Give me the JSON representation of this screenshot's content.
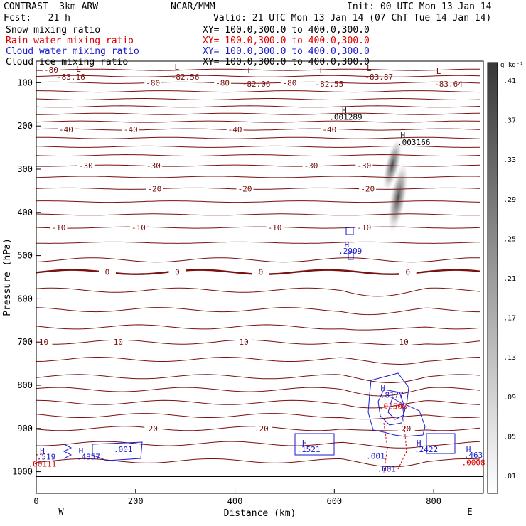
{
  "header": {
    "left_line1": "CONTRAST  3km ARW",
    "left_line2": "Fcst:   21 h",
    "center": "NCAR/MMM",
    "init": "Init: 00 UTC Mon 13 Jan 14",
    "valid": "Valid: 21 UTC Mon 13 Jan 14 (07 ChT Tue 14 Jan 14)"
  },
  "fields": [
    {
      "name": "Snow mixing ratio",
      "xy": "XY= 100.0,300.0 to 400.0,300.0",
      "color": "#000000"
    },
    {
      "name": "Rain water mixing ratio",
      "xy": "XY= 100.0,300.0 to 400.0,300.0",
      "color": "#dd0000"
    },
    {
      "name": "Cloud water mixing ratio",
      "xy": "XY= 100.0,300.0 to 400.0,300.0",
      "color": "#1a1ad0"
    },
    {
      "name": "Cloud ice mixing ratio",
      "xy": "XY= 100.0,300.0 to 400.0,300.0",
      "color": "#000000"
    }
  ],
  "colors": {
    "temperature": "#7a1010",
    "cloud_water": "#1a1ad0",
    "rain": "#dd0000",
    "snow_shade": "#404040"
  },
  "chart_data": {
    "type": "cross-section",
    "xlabel": "Distance (km)",
    "ylabel": "Pressure (hPa)",
    "xlim": [
      0,
      900
    ],
    "ylim": [
      1050,
      50
    ],
    "xticks": [
      0,
      200,
      400,
      600,
      800
    ],
    "yticks": [
      100,
      200,
      300,
      400,
      500,
      600,
      700,
      800,
      900,
      1000
    ],
    "left_end": "W",
    "right_end": "E",
    "colorbar": {
      "unit": "g kg⁻¹",
      "levels": [
        ".01",
        ".05",
        ".09",
        ".13",
        ".17",
        ".21",
        ".25",
        ".29",
        ".33",
        ".37",
        ".41"
      ]
    },
    "temperature_contours": [
      {
        "p": 70,
        "labels": [
          {
            "x": 30,
            "t": "-80"
          }
        ]
      },
      {
        "p": 85
      },
      {
        "p": 100,
        "labels": [
          {
            "x": 235,
            "t": "-80"
          },
          {
            "x": 375,
            "t": "-80"
          },
          {
            "x": 510,
            "t": "-80"
          }
        ]
      },
      {
        "p": 120
      },
      {
        "p": 138
      },
      {
        "p": 155
      },
      {
        "p": 172
      },
      {
        "p": 190
      },
      {
        "p": 208,
        "labels": [
          {
            "x": 60,
            "t": "-40"
          },
          {
            "x": 190,
            "t": "-40"
          },
          {
            "x": 400,
            "t": "-40"
          },
          {
            "x": 590,
            "t": "-40"
          }
        ]
      },
      {
        "p": 228
      },
      {
        "p": 248
      },
      {
        "p": 268
      },
      {
        "p": 292,
        "labels": [
          {
            "x": 100,
            "t": "-30"
          },
          {
            "x": 236,
            "t": "-30"
          },
          {
            "x": 553,
            "t": "-30"
          },
          {
            "x": 660,
            "t": "-30"
          }
        ]
      },
      {
        "p": 318
      },
      {
        "p": 345,
        "labels": [
          {
            "x": 238,
            "t": "-20"
          },
          {
            "x": 420,
            "t": "-20"
          },
          {
            "x": 667,
            "t": "-20"
          }
        ]
      },
      {
        "p": 375
      },
      {
        "p": 405
      },
      {
        "p": 435,
        "labels": [
          {
            "x": 45,
            "t": "-10"
          },
          {
            "x": 206,
            "t": "-10"
          },
          {
            "x": 480,
            "t": "-10"
          },
          {
            "x": 660,
            "t": "-10"
          }
        ]
      },
      {
        "p": 470
      },
      {
        "p": 510
      },
      {
        "p": 538,
        "bold": true,
        "labels": [
          {
            "x": 143,
            "t": "0"
          },
          {
            "x": 284,
            "t": "0"
          },
          {
            "x": 452,
            "t": "0"
          },
          {
            "x": 748,
            "t": "0"
          }
        ]
      },
      {
        "p": 580
      },
      {
        "p": 625
      },
      {
        "p": 665
      },
      {
        "p": 700,
        "labels": [
          {
            "x": 15,
            "t": "10"
          },
          {
            "x": 165,
            "t": "10"
          },
          {
            "x": 418,
            "t": "10"
          },
          {
            "x": 740,
            "t": "10"
          }
        ]
      },
      {
        "p": 740
      },
      {
        "p": 780
      },
      {
        "p": 810
      },
      {
        "p": 840
      },
      {
        "p": 870
      },
      {
        "p": 900,
        "labels": [
          {
            "x": 235,
            "t": "20"
          },
          {
            "x": 458,
            "t": "20"
          },
          {
            "x": 745,
            "t": "20"
          }
        ]
      },
      {
        "p": 935
      },
      {
        "p": 975
      }
    ],
    "extrema_labels": [
      {
        "x": 85,
        "p": 75,
        "t": "L"
      },
      {
        "x": 70,
        "p": 93,
        "t": "-83.16"
      },
      {
        "x": 283,
        "p": 70,
        "t": "L"
      },
      {
        "x": 300,
        "p": 93,
        "t": "-82.56"
      },
      {
        "x": 430,
        "p": 78,
        "t": "L"
      },
      {
        "x": 443,
        "p": 109,
        "t": "-82.06"
      },
      {
        "x": 575,
        "p": 78,
        "t": "L"
      },
      {
        "x": 590,
        "p": 109,
        "t": "-82.55"
      },
      {
        "x": 670,
        "p": 73,
        "t": "L"
      },
      {
        "x": 690,
        "p": 93,
        "t": "-83.87"
      },
      {
        "x": 810,
        "p": 80,
        "t": "L"
      },
      {
        "x": 830,
        "p": 109,
        "t": "-83.64"
      },
      {
        "x": 620,
        "p": 170,
        "t": "H"
      },
      {
        "x": 623,
        "p": 186,
        "t": ".001289"
      },
      {
        "x": 738,
        "p": 228,
        "t": "H"
      },
      {
        "x": 760,
        "p": 244,
        "t": ".003166"
      },
      {
        "x": 625,
        "p": 480,
        "t": "H"
      },
      {
        "x": 632,
        "p": 496,
        "t": ".2909"
      },
      {
        "x": 698,
        "p": 813,
        "t": "H"
      },
      {
        "x": 716,
        "p": 829,
        "t": ".8177"
      },
      {
        "x": 718,
        "p": 855,
        "t": ".02508"
      },
      {
        "x": 540,
        "p": 940,
        "t": "H"
      },
      {
        "x": 548,
        "p": 955,
        "t": ".1521"
      },
      {
        "x": 770,
        "p": 940,
        "t": "H"
      },
      {
        "x": 785,
        "p": 955,
        "t": ".2422"
      },
      {
        "x": 683,
        "p": 970,
        "t": ".001"
      },
      {
        "x": 705,
        "p": 1000,
        "t": ".001"
      },
      {
        "x": 12,
        "p": 958,
        "t": "H"
      },
      {
        "x": 20,
        "p": 972,
        "t": ".519"
      },
      {
        "x": 12,
        "p": 988,
        "t": ".00111"
      },
      {
        "x": 90,
        "p": 958,
        "t": "H"
      },
      {
        "x": 105,
        "p": 972,
        "t": ".4857"
      },
      {
        "x": 175,
        "p": 955,
        "t": ".001"
      },
      {
        "x": 870,
        "p": 955,
        "t": "H"
      },
      {
        "x": 880,
        "p": 968,
        "t": ".463"
      },
      {
        "x": 880,
        "p": 985,
        "t": ".0008"
      }
    ],
    "snow_max": {
      "x": 740,
      "p": 250,
      "value": ".003166"
    }
  }
}
